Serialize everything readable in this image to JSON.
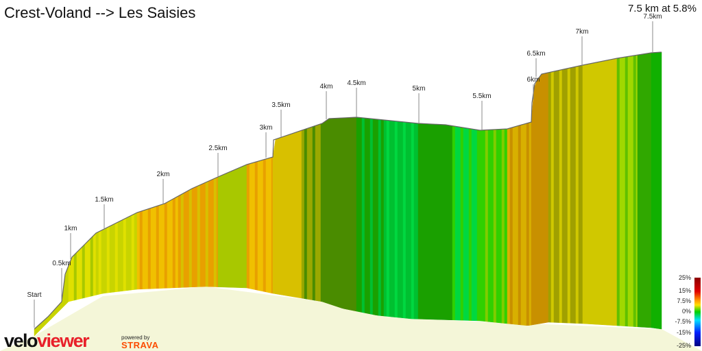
{
  "title": "Crest-Voland --> Les Saisies",
  "summary": "7.5 km at 5.8%",
  "chart_data": {
    "type": "area",
    "title": "Crest-Voland --> Les Saisies",
    "x_unit": "km",
    "markers": [
      "Start",
      "0.5km",
      "1km",
      "1.5km",
      "2km",
      "2.5km",
      "3km",
      "3.5km",
      "4km",
      "4.5km",
      "5km",
      "5.5km",
      "6km",
      "6.5km",
      "7km",
      "7.5km"
    ],
    "gradient_legend": [
      "25%",
      "15%",
      "7.5%",
      "0%",
      "-7.5%",
      "-15%",
      "-25%"
    ],
    "segment_colors": [
      "#c8d400",
      "#e0e000",
      "#a8c800",
      "#f0c000",
      "#e8a000",
      "#d8c000",
      "#f0b000",
      "#9aa800",
      "#4a8c00",
      "#1aa000",
      "#00c030",
      "#00d840",
      "#30d000",
      "#80cc00",
      "#d8b000",
      "#c89000",
      "#a0a000",
      "#d0c800",
      "#a0d800",
      "#60c000",
      "#30a800",
      "#10b000"
    ]
  },
  "legend": {
    "labels": [
      "25%",
      "15%",
      "7.5%",
      "0%",
      "-7.5%",
      "-15%",
      "-25%"
    ]
  },
  "branding": {
    "velo": "velo",
    "viewer": "viewer",
    "powered": "powered by",
    "strava": "STRAVA"
  }
}
